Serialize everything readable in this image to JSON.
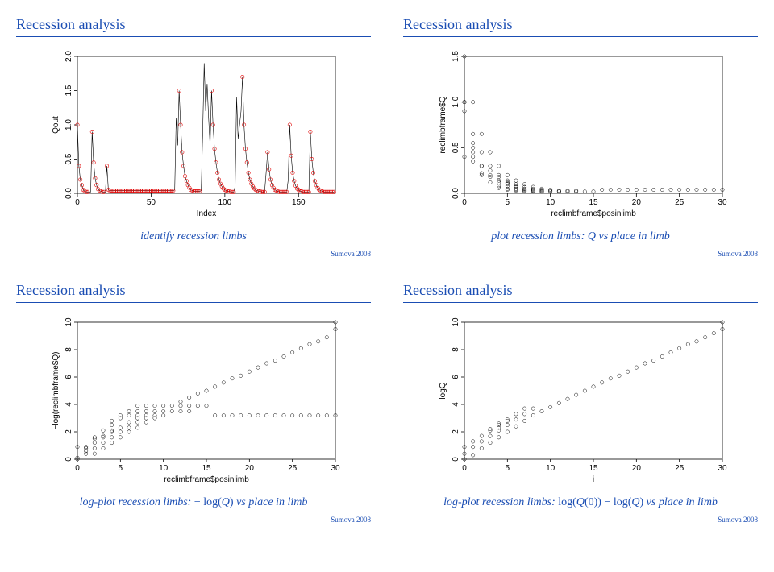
{
  "global": {
    "title": "Recession analysis",
    "footer": "Sumova 2008",
    "title_color": "#1a4db3",
    "rule_color": "#1a4db3"
  },
  "plotA": {
    "xlabel": "Index",
    "ylabel": "Qout",
    "xlim": [
      0,
      175
    ],
    "xticks": [
      0,
      50,
      100,
      150
    ],
    "ylim": [
      0,
      2.0
    ],
    "yticks": [
      0,
      0.5,
      1.0,
      1.5,
      2.0
    ],
    "yticklabels": [
      "0.0",
      "0.5",
      "1.0",
      "1.5",
      "2.0"
    ],
    "caption": "identify recession limbs",
    "line_color": "#000000",
    "peak_color": "#e00000",
    "series_y": [
      1.0,
      0.4,
      0.2,
      0.12,
      0.05,
      0.03,
      0.02,
      0.02,
      0.02,
      0.02,
      0.9,
      0.45,
      0.22,
      0.12,
      0.06,
      0.04,
      0.03,
      0.02,
      0.02,
      0.02,
      0.4,
      0.05,
      0.04,
      0.04,
      0.04,
      0.04,
      0.04,
      0.04,
      0.04,
      0.04,
      0.04,
      0.04,
      0.04,
      0.04,
      0.04,
      0.04,
      0.04,
      0.04,
      0.04,
      0.04,
      0.04,
      0.04,
      0.04,
      0.04,
      0.04,
      0.04,
      0.04,
      0.04,
      0.04,
      0.04,
      0.04,
      0.04,
      0.04,
      0.04,
      0.04,
      0.04,
      0.04,
      0.04,
      0.04,
      0.04,
      0.04,
      0.04,
      0.04,
      0.04,
      0.04,
      0.04,
      0.05,
      1.1,
      0.7,
      1.5,
      1.0,
      0.6,
      0.4,
      0.25,
      0.18,
      0.12,
      0.08,
      0.05,
      0.04,
      0.03,
      0.03,
      0.03,
      0.03,
      0.03,
      0.04,
      0.9,
      1.9,
      1.2,
      1.6,
      1.1,
      0.7,
      1.5,
      1.0,
      0.65,
      0.45,
      0.3,
      0.2,
      0.14,
      0.1,
      0.07,
      0.05,
      0.04,
      0.03,
      0.03,
      0.02,
      0.02,
      0.02,
      0.1,
      1.4,
      0.8,
      1.0,
      1.2,
      1.7,
      1.0,
      0.65,
      0.45,
      0.3,
      0.2,
      0.14,
      0.1,
      0.07,
      0.05,
      0.04,
      0.03,
      0.03,
      0.02,
      0.02,
      0.02,
      0.3,
      0.6,
      0.35,
      0.2,
      0.12,
      0.08,
      0.05,
      0.04,
      0.03,
      0.02,
      0.02,
      0.02,
      0.02,
      0.02,
      0.02,
      0.2,
      1.0,
      0.55,
      0.3,
      0.18,
      0.11,
      0.07,
      0.05,
      0.03,
      0.03,
      0.02,
      0.02,
      0.02,
      0.02,
      0.02,
      0.9,
      0.5,
      0.3,
      0.18,
      0.12,
      0.08,
      0.05,
      0.04,
      0.03,
      0.02,
      0.02,
      0.02,
      0.02,
      0.02,
      0.02,
      0.02,
      0.02
    ],
    "peak_indices": [
      0,
      1,
      2,
      3,
      4,
      5,
      6,
      7,
      10,
      11,
      12,
      13,
      14,
      15,
      16,
      17,
      18,
      20,
      21,
      22,
      23,
      24,
      25,
      26,
      27,
      28,
      29,
      30,
      31,
      32,
      33,
      34,
      35,
      36,
      37,
      38,
      39,
      40,
      41,
      42,
      43,
      44,
      45,
      46,
      47,
      48,
      49,
      50,
      51,
      52,
      53,
      54,
      55,
      56,
      57,
      58,
      59,
      60,
      61,
      62,
      63,
      64,
      65,
      69,
      70,
      71,
      72,
      73,
      74,
      75,
      76,
      77,
      78,
      79,
      80,
      81,
      82,
      83,
      91,
      92,
      93,
      94,
      95,
      96,
      97,
      98,
      99,
      100,
      101,
      102,
      103,
      104,
      105,
      106,
      112,
      113,
      114,
      115,
      116,
      117,
      118,
      119,
      120,
      121,
      122,
      123,
      124,
      125,
      126,
      127,
      129,
      130,
      131,
      132,
      133,
      134,
      135,
      136,
      137,
      138,
      139,
      140,
      141,
      142,
      144,
      145,
      146,
      147,
      148,
      149,
      150,
      151,
      152,
      153,
      154,
      155,
      156,
      157,
      158,
      159,
      160,
      161,
      162,
      163,
      164,
      165,
      166,
      167,
      168,
      169,
      170,
      171,
      172,
      173,
      174
    ]
  },
  "plotB": {
    "xlabel": "reclimbframe$posinlimb",
    "ylabel": "reclimbframe$Q",
    "xlim": [
      0,
      30
    ],
    "xticks": [
      0,
      5,
      10,
      15,
      20,
      25,
      30
    ],
    "ylim": [
      0,
      1.5
    ],
    "yticks": [
      0,
      0.5,
      1.0,
      1.5
    ],
    "yticklabels": [
      "0.0",
      "0.5",
      "1.0",
      "1.5"
    ],
    "caption_html": "plot recession limbs: <span class='math'><i>Q</i></span> vs place in limb",
    "points": [
      [
        0,
        1.0
      ],
      [
        0,
        1.5
      ],
      [
        0,
        1.0
      ],
      [
        0,
        0.9
      ],
      [
        0,
        0.4
      ],
      [
        1,
        1.0
      ],
      [
        1,
        0.65
      ],
      [
        1,
        0.55
      ],
      [
        1,
        0.4
      ],
      [
        1,
        0.5
      ],
      [
        1,
        0.45
      ],
      [
        1,
        0.35
      ],
      [
        2,
        0.65
      ],
      [
        2,
        0.45
      ],
      [
        2,
        0.3
      ],
      [
        2,
        0.22
      ],
      [
        2,
        0.3
      ],
      [
        2,
        0.2
      ],
      [
        3,
        0.45
      ],
      [
        3,
        0.3
      ],
      [
        3,
        0.2
      ],
      [
        3,
        0.12
      ],
      [
        3,
        0.18
      ],
      [
        3,
        0.25
      ],
      [
        4,
        0.3
      ],
      [
        4,
        0.2
      ],
      [
        4,
        0.14
      ],
      [
        4,
        0.12
      ],
      [
        4,
        0.08
      ],
      [
        4,
        0.06
      ],
      [
        4,
        0.18
      ],
      [
        5,
        0.2
      ],
      [
        5,
        0.14
      ],
      [
        5,
        0.1
      ],
      [
        5,
        0.05
      ],
      [
        5,
        0.04
      ],
      [
        5,
        0.08
      ],
      [
        5,
        0.11
      ],
      [
        5,
        0.12
      ],
      [
        6,
        0.14
      ],
      [
        6,
        0.1
      ],
      [
        6,
        0.07
      ],
      [
        6,
        0.04
      ],
      [
        6,
        0.03
      ],
      [
        6,
        0.05
      ],
      [
        6,
        0.08
      ],
      [
        6,
        0.07
      ],
      [
        7,
        0.1
      ],
      [
        7,
        0.07
      ],
      [
        7,
        0.05
      ],
      [
        7,
        0.03
      ],
      [
        7,
        0.04
      ],
      [
        7,
        0.02
      ],
      [
        7,
        0.05
      ],
      [
        8,
        0.07
      ],
      [
        8,
        0.05
      ],
      [
        8,
        0.04
      ],
      [
        8,
        0.03
      ],
      [
        8,
        0.02
      ],
      [
        8,
        0.03
      ],
      [
        9,
        0.05
      ],
      [
        9,
        0.04
      ],
      [
        9,
        0.03
      ],
      [
        9,
        0.02
      ],
      [
        9,
        0.02
      ],
      [
        10,
        0.04
      ],
      [
        10,
        0.03
      ],
      [
        10,
        0.02
      ],
      [
        11,
        0.03
      ],
      [
        11,
        0.02
      ],
      [
        11,
        0.02
      ],
      [
        12,
        0.03
      ],
      [
        12,
        0.02
      ],
      [
        13,
        0.02
      ],
      [
        13,
        0.03
      ],
      [
        14,
        0.02
      ],
      [
        15,
        0.02
      ],
      [
        16,
        0.04
      ],
      [
        17,
        0.04
      ],
      [
        18,
        0.04
      ],
      [
        19,
        0.04
      ],
      [
        20,
        0.04
      ],
      [
        21,
        0.04
      ],
      [
        22,
        0.04
      ],
      [
        23,
        0.04
      ],
      [
        24,
        0.04
      ],
      [
        25,
        0.04
      ],
      [
        26,
        0.04
      ],
      [
        27,
        0.04
      ],
      [
        28,
        0.04
      ],
      [
        29,
        0.04
      ],
      [
        30,
        0.04
      ]
    ]
  },
  "plotC": {
    "xlabel": "reclimbframe$posinlimb",
    "ylabel": "−log(reclimbframe$Q)",
    "xlim": [
      0,
      30
    ],
    "xticks": [
      0,
      5,
      10,
      15,
      20,
      25,
      30
    ],
    "ylim": [
      0,
      10
    ],
    "yticks": [
      0,
      2,
      4,
      6,
      8,
      10
    ],
    "caption_html": "log-plot recession limbs: <span class='math'>− log(<i>Q</i>)</span> vs place in limb",
    "points": [
      [
        0,
        0.0
      ],
      [
        0,
        0.1
      ],
      [
        0,
        0.9
      ],
      [
        1,
        0.4
      ],
      [
        1,
        0.6
      ],
      [
        1,
        0.8
      ],
      [
        1,
        0.9
      ],
      [
        2,
        0.4
      ],
      [
        2,
        0.8
      ],
      [
        2,
        1.2
      ],
      [
        2,
        1.5
      ],
      [
        2,
        1.6
      ],
      [
        3,
        0.8
      ],
      [
        3,
        1.2
      ],
      [
        3,
        1.6
      ],
      [
        3,
        1.7
      ],
      [
        3,
        2.1
      ],
      [
        4,
        1.2
      ],
      [
        4,
        1.6
      ],
      [
        4,
        2.0
      ],
      [
        4,
        2.1
      ],
      [
        4,
        2.5
      ],
      [
        4,
        2.8
      ],
      [
        5,
        1.6
      ],
      [
        5,
        2.0
      ],
      [
        5,
        2.3
      ],
      [
        5,
        3.0
      ],
      [
        5,
        3.2
      ],
      [
        6,
        2.0
      ],
      [
        6,
        2.3
      ],
      [
        6,
        2.7
      ],
      [
        6,
        3.2
      ],
      [
        6,
        3.5
      ],
      [
        7,
        2.3
      ],
      [
        7,
        2.7
      ],
      [
        7,
        3.0
      ],
      [
        7,
        3.5
      ],
      [
        7,
        3.2
      ],
      [
        7,
        3.9
      ],
      [
        8,
        2.7
      ],
      [
        8,
        3.0
      ],
      [
        8,
        3.2
      ],
      [
        8,
        3.5
      ],
      [
        8,
        3.9
      ],
      [
        9,
        3.0
      ],
      [
        9,
        3.2
      ],
      [
        9,
        3.5
      ],
      [
        9,
        3.9
      ],
      [
        10,
        3.2
      ],
      [
        10,
        3.5
      ],
      [
        10,
        3.9
      ],
      [
        11,
        3.5
      ],
      [
        11,
        3.9
      ],
      [
        12,
        3.5
      ],
      [
        12,
        3.9
      ],
      [
        13,
        3.9
      ],
      [
        13,
        3.5
      ],
      [
        14,
        3.9
      ],
      [
        15,
        3.9
      ],
      [
        16,
        3.2
      ],
      [
        17,
        3.2
      ],
      [
        18,
        3.2
      ],
      [
        19,
        3.2
      ],
      [
        20,
        3.2
      ],
      [
        21,
        3.2
      ],
      [
        22,
        3.2
      ],
      [
        23,
        3.2
      ],
      [
        24,
        3.2
      ],
      [
        25,
        3.2
      ],
      [
        26,
        3.2
      ],
      [
        27,
        3.2
      ],
      [
        28,
        3.2
      ],
      [
        29,
        3.2
      ],
      [
        30,
        3.2
      ],
      [
        12,
        4.2
      ],
      [
        13,
        4.5
      ],
      [
        14,
        4.8
      ],
      [
        15,
        5.0
      ],
      [
        16,
        5.3
      ],
      [
        17,
        5.6
      ],
      [
        18,
        5.9
      ],
      [
        19,
        6.1
      ],
      [
        20,
        6.4
      ],
      [
        21,
        6.7
      ],
      [
        22,
        7.0
      ],
      [
        23,
        7.2
      ],
      [
        24,
        7.5
      ],
      [
        25,
        7.8
      ],
      [
        26,
        8.1
      ],
      [
        27,
        8.4
      ],
      [
        28,
        8.6
      ],
      [
        29,
        8.9
      ],
      [
        30,
        9.5
      ],
      [
        30,
        10.0
      ]
    ]
  },
  "plotD": {
    "xlabel": "i",
    "ylabel": "logQ",
    "xlim": [
      0,
      30
    ],
    "xticks": [
      0,
      5,
      10,
      15,
      20,
      25,
      30
    ],
    "ylim": [
      0,
      10
    ],
    "yticks": [
      0,
      2,
      4,
      6,
      8,
      10
    ],
    "caption_html": "log-plot recession limbs: <span class='math'>log(<i>Q</i>(0)) − log(<i>Q</i>)</span> vs place in limb",
    "points": [
      [
        0,
        0.0
      ],
      [
        0,
        0.4
      ],
      [
        0,
        0.9
      ],
      [
        1,
        0.3
      ],
      [
        1,
        0.9
      ],
      [
        1,
        1.3
      ],
      [
        2,
        0.8
      ],
      [
        2,
        1.3
      ],
      [
        2,
        1.7
      ],
      [
        3,
        1.2
      ],
      [
        3,
        1.7
      ],
      [
        3,
        2.1
      ],
      [
        3,
        2.2
      ],
      [
        4,
        1.6
      ],
      [
        4,
        2.1
      ],
      [
        4,
        2.5
      ],
      [
        4,
        2.3
      ],
      [
        4,
        2.6
      ],
      [
        5,
        2.0
      ],
      [
        5,
        2.5
      ],
      [
        5,
        2.9
      ],
      [
        5,
        2.8
      ],
      [
        6,
        2.4
      ],
      [
        6,
        2.9
      ],
      [
        6,
        3.3
      ],
      [
        7,
        2.8
      ],
      [
        7,
        3.3
      ],
      [
        7,
        3.7
      ],
      [
        8,
        3.2
      ],
      [
        8,
        3.7
      ],
      [
        9,
        3.5
      ],
      [
        10,
        3.8
      ],
      [
        11,
        4.1
      ],
      [
        12,
        4.4
      ],
      [
        13,
        4.7
      ],
      [
        14,
        5.0
      ],
      [
        15,
        5.3
      ],
      [
        16,
        5.6
      ],
      [
        17,
        5.9
      ],
      [
        18,
        6.1
      ],
      [
        19,
        6.4
      ],
      [
        20,
        6.7
      ],
      [
        21,
        7.0
      ],
      [
        22,
        7.2
      ],
      [
        23,
        7.5
      ],
      [
        24,
        7.8
      ],
      [
        25,
        8.1
      ],
      [
        26,
        8.4
      ],
      [
        27,
        8.6
      ],
      [
        28,
        8.9
      ],
      [
        29,
        9.2
      ],
      [
        30,
        9.5
      ],
      [
        30,
        10.0
      ]
    ]
  }
}
